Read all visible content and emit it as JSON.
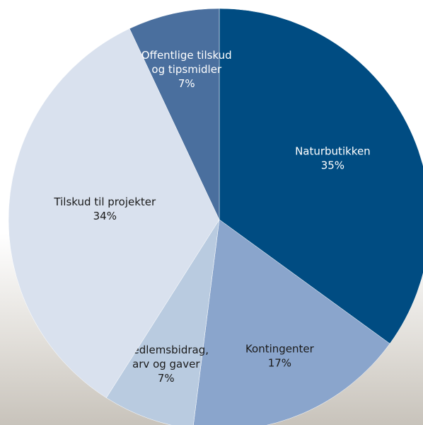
{
  "chart_data": {
    "type": "pie",
    "categories": [
      "Naturbutikken",
      "Kontingenter",
      "Medlemsbidrag,\narv og gaver",
      "Tilskud til projekter",
      "Offentlige tilskud\nog tipsmidler"
    ],
    "values": [
      35,
      17,
      7,
      34,
      7
    ],
    "value_labels": [
      "35%",
      "17%",
      "7%",
      "34%",
      "7%"
    ],
    "colors": [
      "#004c82",
      "#8aa5cc",
      "#b9cbe0",
      "#d9e1ee",
      "#4a6f9e"
    ],
    "label_colors": [
      "#ffffff",
      "#1a1a1a",
      "#1a1a1a",
      "#1a1a1a",
      "#ffffff"
    ]
  }
}
